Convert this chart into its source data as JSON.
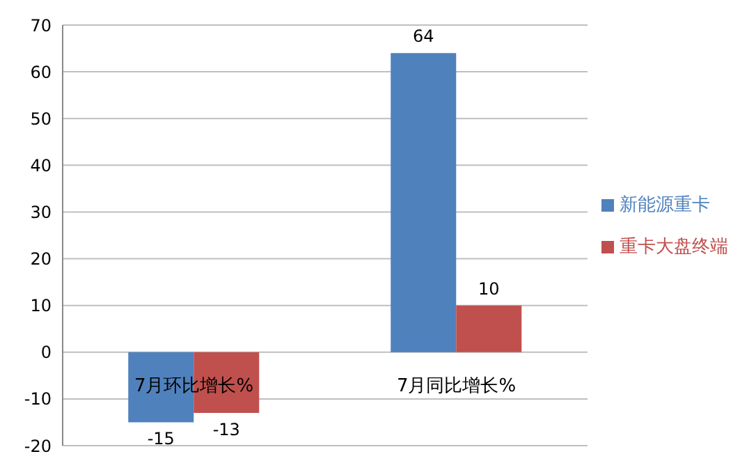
{
  "chart_data": {
    "type": "bar",
    "categories": [
      "7月环比增长%",
      "7月同比增长%"
    ],
    "series": [
      {
        "name": "新能源重卡",
        "color": "#4f81bd",
        "values": [
          -15,
          64
        ]
      },
      {
        "name": "重卡大盘终端",
        "color": "#c0504d",
        "values": [
          -13,
          10
        ]
      }
    ],
    "ylim": [
      -20,
      70
    ],
    "yticks": [
      -20,
      -10,
      0,
      10,
      20,
      30,
      40,
      50,
      60,
      70
    ],
    "grid": "y",
    "legend": "right",
    "data_labels": true
  }
}
